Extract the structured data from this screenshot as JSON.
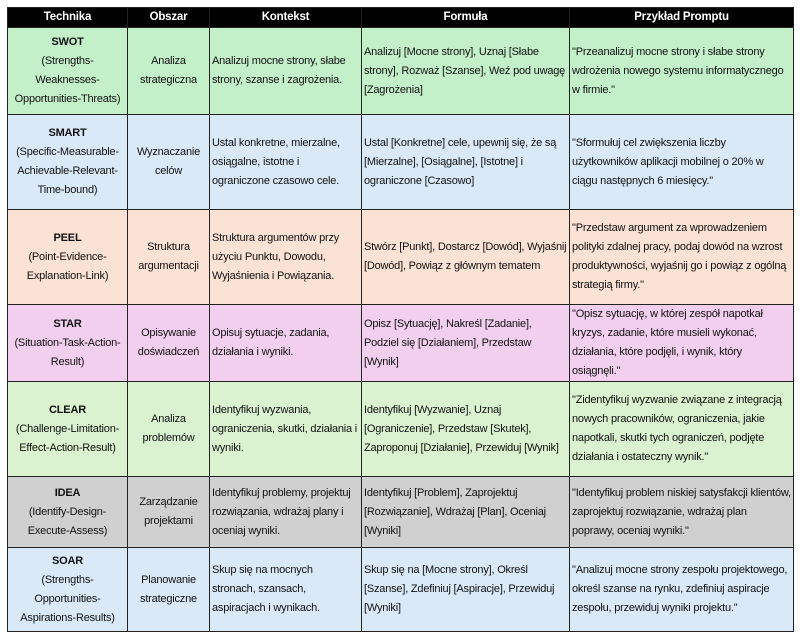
{
  "headers": [
    "Technika",
    "Obszar",
    "Kontekst",
    "Formuła",
    "Przykład Promptu"
  ],
  "rows": [
    {
      "name": "SWOT",
      "expansion": "(Strengths-Weaknesses-Opportunities-Threats)",
      "area": "Analiza strategiczna",
      "context": "Analizuj mocne strony, słabe strony, szanse i zagrożenia.",
      "formula": "Analizuj [Mocne strony], Uznaj [Słabe strony], Rozważ [Szanse], Weź pod uwagę [Zagrożenia]",
      "example": "\"Przeanalizuj mocne strony i słabe strony wdrożenia nowego systemu informatycznego w firmie.\"",
      "color": "#c3efc9"
    },
    {
      "name": "SMART",
      "expansion": "(Specific-Measurable-Achievable-Relevant-Time-bound)",
      "area": "Wyznaczanie celów",
      "context": "Ustal konkretne, mierzalne, osiągalne, istotne i ograniczone czasowo cele.",
      "formula": "Ustal [Konkretne] cele, upewnij się, że są [Mierzalne], [Osiągalne], [Istotne] i ograniczone [Czasowo]",
      "example": "\"Sformułuj cel zwiększenia liczby użytkowników aplikacji mobilnej o 20% w ciągu następnych 6 miesięcy.\"",
      "color": "#dae9f8"
    },
    {
      "name": "PEEL",
      "expansion": "(Point-Evidence-Explanation-Link)",
      "area": "Struktura argumentacji",
      "context": "Struktura argumentów przy użyciu Punktu, Dowodu, Wyjaśnienia i Powiązania.",
      "formula": "Stwórz [Punkt], Dostarcz [Dowód], Wyjaśnij [Dowód], Powiąz z głównym tematem",
      "example": "\"Przedstaw argument za wprowadzeniem polityki zdalnej pracy, podaj dowód na wzrost produktywności, wyjaśnij go i powiąz z ogólną strategią firmy.\"",
      "color": "#fbe2d5"
    },
    {
      "name": "STAR",
      "expansion": "(Situation-Task-Action-Result)",
      "area": "Opisywanie doświadczeń",
      "context": "Opisuj sytuacje, zadania, działania i wyniki.",
      "formula": "Opisz [Sytuację], Nakreśl [Zadanie], Podziel się [Działaniem], Przedstaw [Wynik]",
      "example": "\"Opisz sytuację, w której zespół napotkał kryzys, zadanie, które musieli wykonać, działania, które podjęli, i wynik, który osiągnęli.\"",
      "color": "#f2cfee"
    },
    {
      "name": "CLEAR",
      "expansion": "(Challenge-Limitation-Effect-Action-Result)",
      "area": "Analiza problemów",
      "context": "Identyfikuj wyzwania, ograniczenia, skutki, działania i wyniki.",
      "formula": "Identyfikuj [Wyzwanie], Uznaj [Ograniczenie], Przedstaw [Skutek], Zaproponuj [Działanie], Przewiduj [Wynik]",
      "example": "\"Zidentyfikuj wyzwanie związane z integracją nowych pracowników, ograniczenia, jakie napotkali, skutki tych ograniczeń, podjęte działania i ostateczny wynik.\"",
      "color": "#daf2d0"
    },
    {
      "name": "IDEA",
      "expansion": "(Identify-Design-Execute-Assess)",
      "area": "Zarządzanie projektami",
      "context": "Identyfikuj problemy, projektuj rozwiązania, wdrażaj plany i oceniaj wyniki.",
      "formula": "Identyfikuj [Problem], Zaprojektuj [Rozwiązanie], Wdrażaj [Plan], Oceniaj [Wyniki]",
      "example": "\"Identyfikuj problem niskiej satysfakcji klientów, zaprojektuj rozwiązanie, wdrażaj plan poprawy, oceniaj wyniki.\"",
      "color": "#d0d0d0"
    },
    {
      "name": "SOAR",
      "expansion": "(Strengths-Opportunities-Aspirations-Results)",
      "area": "Planowanie strategiczne",
      "context": "Skup się na mocnych stronach, szansach, aspiracjach i wynikach.",
      "formula": "Skup się na [Mocne strony], Określ [Szanse], Zdefiniuj [Aspiracje], Przewiduj [Wyniki]",
      "example": "\"Analizuj mocne strony zespołu projektowego, określ szanse na rynku, zdefiniuj aspiracje zespołu, przewiduj wyniki projektu.\"",
      "color": "#dae9f8"
    }
  ]
}
